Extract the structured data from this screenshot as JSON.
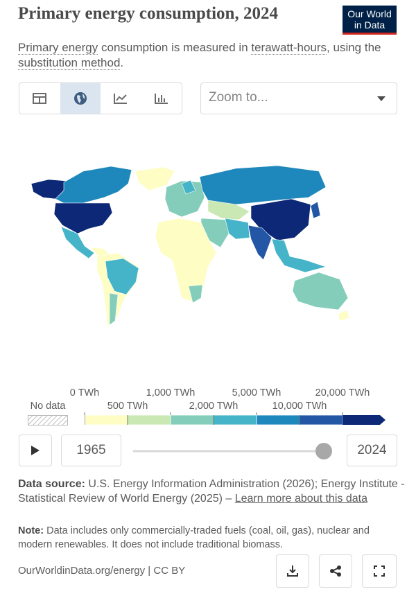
{
  "header": {
    "title": "Primary energy consumption, 2024",
    "logo": [
      "Our World",
      "in Data"
    ],
    "subtitle": [
      {
        "text": "Primary energy",
        "link": true
      },
      {
        "text": " consumption is measured in "
      },
      {
        "text": "terawatt-hours",
        "link": true
      },
      {
        "text": ", using the "
      },
      {
        "text": "substitution method",
        "link": true
      },
      {
        "text": "."
      }
    ]
  },
  "controls": {
    "zoom": "Zoom to..."
  },
  "legend": {
    "no_data": "No data",
    "ticks": [
      "0 TWh",
      "500 TWh",
      "1,000 TWh",
      "2,000 TWh",
      "5,000 TWh",
      "10,000 TWh",
      "20,000 TWh"
    ],
    "colors": [
      "#fdfdc4",
      "#c9e8b3",
      "#84cdbb",
      "#45b3c8",
      "#1e88bd",
      "#2357a5",
      "#0c2876"
    ]
  },
  "timeline": {
    "start": "1965",
    "end": "2024"
  },
  "source": {
    "label": "Data source:",
    "text": " U.S. Energy Information Administration (2026); Energy Institute - Statistical Review of World Energy (2025) – ",
    "link": "Learn more about this data"
  },
  "note": {
    "label": "Note:",
    "text": " Data includes only commercially-traded fuels (coal, oil, gas), nuclear and modern renewables. It does not include traditional biomass."
  },
  "footer": "OurWorldinData.org/energy | CC BY"
}
